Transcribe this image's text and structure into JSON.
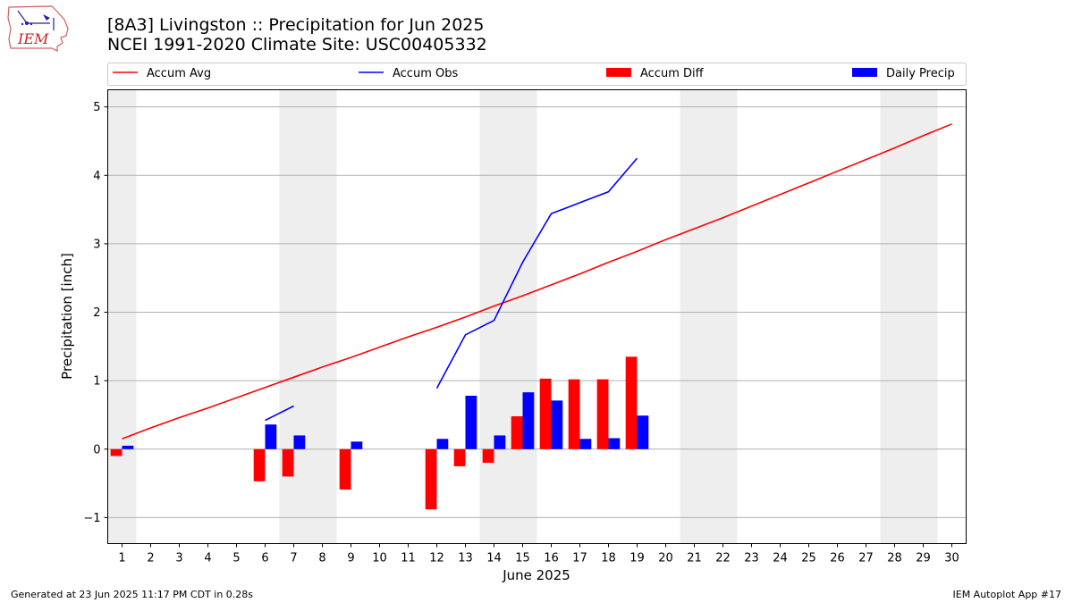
{
  "header": {
    "title_line1": "[8A3] Livingston :: Precipitation for Jun 2025",
    "title_line2": "NCEI 1991-2020 Climate Site: USC00405332",
    "logo_text": "IEM"
  },
  "footer": {
    "generated": "Generated at 23 Jun 2025 11:17 PM CDT in 0.28s",
    "app": "IEM Autoplot App #17"
  },
  "colors": {
    "accum_avg": "#ff0000",
    "accum_obs": "#0000ff",
    "accum_diff": "#ff0000",
    "daily_precip": "#0000ff",
    "weekend_band": "#eeeeee",
    "grid": "#b0b0b0"
  },
  "chart_data": {
    "type": "bar",
    "xlabel": "June 2025",
    "ylabel": "Precipitation [inch]",
    "xlim": [
      0.5,
      30.5
    ],
    "ylim": [
      -1.38,
      5.25
    ],
    "x_ticks": [
      1,
      2,
      3,
      4,
      5,
      6,
      7,
      8,
      9,
      10,
      11,
      12,
      13,
      14,
      15,
      16,
      17,
      18,
      19,
      20,
      21,
      22,
      23,
      24,
      25,
      26,
      27,
      28,
      29,
      30
    ],
    "y_ticks": [
      -1,
      0,
      1,
      2,
      3,
      4,
      5
    ],
    "y_tick_labels": [
      "−1",
      "0",
      "1",
      "2",
      "3",
      "4",
      "5"
    ],
    "grid": "horizontal",
    "legend": {
      "placement": "top",
      "entries": [
        "Accum Avg",
        "Accum Obs",
        "Accum Diff",
        "Daily Precip"
      ]
    },
    "weekend_bands": [
      [
        0.5,
        1.5
      ],
      [
        6.5,
        8.5
      ],
      [
        13.5,
        15.5
      ],
      [
        20.5,
        22.5
      ],
      [
        27.5,
        29.5
      ]
    ],
    "series": [
      {
        "name": "Accum Avg",
        "kind": "line",
        "x": [
          1,
          2,
          3,
          4,
          5,
          6,
          7,
          8,
          9,
          10,
          11,
          12,
          13,
          14,
          15,
          16,
          17,
          18,
          19,
          20,
          21,
          22,
          23,
          24,
          25,
          26,
          27,
          28,
          29,
          30
        ],
        "values": [
          0.15,
          0.31,
          0.46,
          0.6,
          0.75,
          0.9,
          1.05,
          1.2,
          1.34,
          1.49,
          1.64,
          1.78,
          1.93,
          2.09,
          2.24,
          2.4,
          2.56,
          2.73,
          2.89,
          3.06,
          3.22,
          3.38,
          3.55,
          3.72,
          3.89,
          4.06,
          4.23,
          4.4,
          4.58,
          4.75
        ]
      },
      {
        "name": "Accum Obs",
        "kind": "line",
        "segments": [
          {
            "x": [
              6,
              7
            ],
            "values": [
              0.42,
              0.63
            ]
          },
          {
            "x": [
              12,
              13,
              14,
              15,
              16,
              17,
              18,
              19
            ],
            "values": [
              0.89,
              1.67,
              1.88,
              2.73,
              3.44,
              3.6,
              3.76,
              4.25
            ]
          }
        ]
      },
      {
        "name": "Accum Diff",
        "kind": "bar",
        "x": [
          1,
          6,
          7,
          9,
          12,
          13,
          14,
          15,
          16,
          17,
          18,
          19
        ],
        "values": [
          -0.1,
          -0.47,
          -0.4,
          -0.59,
          -0.88,
          -0.25,
          -0.2,
          0.48,
          1.03,
          1.02,
          1.02,
          1.35
        ]
      },
      {
        "name": "Daily Precip",
        "kind": "bar",
        "x": [
          1,
          6,
          7,
          9,
          12,
          13,
          14,
          15,
          16,
          17,
          18,
          19
        ],
        "values": [
          0.05,
          0.36,
          0.2,
          0.11,
          0.15,
          0.78,
          0.2,
          0.83,
          0.71,
          0.15,
          0.16,
          0.49
        ]
      }
    ]
  }
}
